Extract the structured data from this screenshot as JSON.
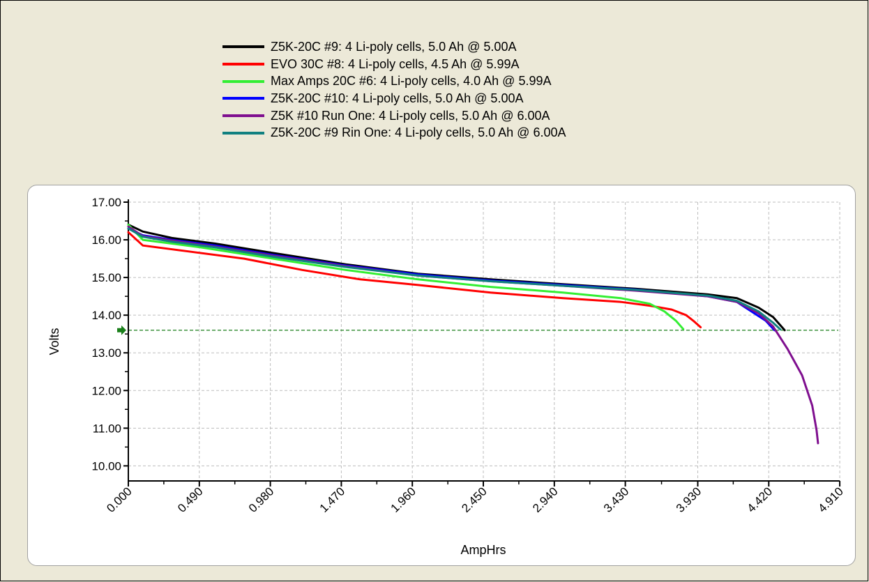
{
  "chart_data": {
    "type": "line",
    "xlabel": "AmpHrs",
    "ylabel": "Volts",
    "xlim": [
      0,
      4.9
    ],
    "ylim": [
      9.6,
      17.0
    ],
    "x_ticks": [
      "0.000",
      "0.490",
      "0.980",
      "1.470",
      "1.960",
      "2.450",
      "2.940",
      "3.430",
      "3.930",
      "4.420",
      "4.910"
    ],
    "y_ticks": [
      "17.00",
      "16.00",
      "15.00",
      "14.00",
      "13.00",
      "12.00",
      "11.00",
      "10.00"
    ],
    "grid": true,
    "legend_position": "top",
    "reference_line": {
      "y": 13.6,
      "color": "#1a7f1a",
      "style": "dashed"
    },
    "series": [
      {
        "name": "Z5K-20C #9: 4 Li-poly cells, 5.0 Ah @ 5.00A",
        "color": "#000000",
        "points": [
          [
            0,
            16.4
          ],
          [
            0.1,
            16.22
          ],
          [
            0.3,
            16.05
          ],
          [
            0.6,
            15.9
          ],
          [
            1.0,
            15.65
          ],
          [
            1.5,
            15.35
          ],
          [
            2.0,
            15.1
          ],
          [
            2.5,
            14.95
          ],
          [
            3.0,
            14.82
          ],
          [
            3.5,
            14.7
          ],
          [
            4.0,
            14.55
          ],
          [
            4.2,
            14.45
          ],
          [
            4.35,
            14.2
          ],
          [
            4.45,
            13.95
          ],
          [
            4.53,
            13.6
          ]
        ]
      },
      {
        "name": "EVO 30C #8: 4 Li-poly cells, 4.5 Ah @ 5.99A",
        "color": "#ff0000",
        "points": [
          [
            0,
            16.2
          ],
          [
            0.1,
            15.85
          ],
          [
            0.4,
            15.7
          ],
          [
            0.8,
            15.5
          ],
          [
            1.2,
            15.2
          ],
          [
            1.6,
            14.95
          ],
          [
            2.0,
            14.8
          ],
          [
            2.5,
            14.6
          ],
          [
            3.0,
            14.45
          ],
          [
            3.4,
            14.35
          ],
          [
            3.6,
            14.25
          ],
          [
            3.75,
            14.15
          ],
          [
            3.85,
            14.0
          ],
          [
            3.9,
            13.85
          ],
          [
            3.95,
            13.68
          ]
        ]
      },
      {
        "name": "Max Amps 20C #6: 4 Li-poly cells, 4.0 Ah @ 5.99A",
        "color": "#33ee33",
        "points": [
          [
            0,
            16.4
          ],
          [
            0.1,
            16.0
          ],
          [
            0.5,
            15.8
          ],
          [
            1.0,
            15.5
          ],
          [
            1.5,
            15.2
          ],
          [
            2.0,
            14.95
          ],
          [
            2.5,
            14.75
          ],
          [
            3.0,
            14.6
          ],
          [
            3.4,
            14.45
          ],
          [
            3.6,
            14.3
          ],
          [
            3.7,
            14.1
          ],
          [
            3.78,
            13.85
          ],
          [
            3.83,
            13.63
          ]
        ]
      },
      {
        "name": "Z5K-20C #10: 4 Li-poly cells, 5.0 Ah @ 5.00A",
        "color": "#0000ff",
        "points": [
          [
            0,
            16.3
          ],
          [
            0.1,
            16.12
          ],
          [
            0.3,
            16.0
          ],
          [
            0.6,
            15.85
          ],
          [
            1.0,
            15.6
          ],
          [
            1.5,
            15.32
          ],
          [
            2.0,
            15.08
          ],
          [
            2.5,
            14.92
          ],
          [
            3.0,
            14.8
          ],
          [
            3.5,
            14.68
          ],
          [
            4.0,
            14.5
          ],
          [
            4.2,
            14.35
          ],
          [
            4.3,
            14.1
          ],
          [
            4.4,
            13.85
          ],
          [
            4.46,
            13.6
          ]
        ]
      },
      {
        "name": "Z5K #10 Run One: 4 Li-poly cells, 5.0 Ah @ 6.00A",
        "color": "#7f0f8f",
        "points": [
          [
            0,
            16.35
          ],
          [
            0.1,
            16.1
          ],
          [
            0.3,
            15.98
          ],
          [
            0.6,
            15.82
          ],
          [
            1.0,
            15.58
          ],
          [
            1.5,
            15.3
          ],
          [
            2.0,
            15.05
          ],
          [
            2.5,
            14.9
          ],
          [
            3.0,
            14.78
          ],
          [
            3.5,
            14.65
          ],
          [
            4.0,
            14.5
          ],
          [
            4.2,
            14.35
          ],
          [
            4.35,
            14.05
          ],
          [
            4.45,
            13.7
          ],
          [
            4.55,
            13.1
          ],
          [
            4.65,
            12.4
          ],
          [
            4.72,
            11.6
          ],
          [
            4.75,
            10.95
          ],
          [
            4.76,
            10.6
          ]
        ]
      },
      {
        "name": "Z5K-20C #9 Rin One: 4 Li-poly cells, 5.0 Ah @ 6.00A",
        "color": "#108080",
        "points": [
          [
            0,
            16.3
          ],
          [
            0.1,
            16.08
          ],
          [
            0.3,
            15.95
          ],
          [
            0.6,
            15.8
          ],
          [
            1.0,
            15.55
          ],
          [
            1.5,
            15.28
          ],
          [
            2.0,
            15.05
          ],
          [
            2.5,
            14.9
          ],
          [
            3.0,
            14.78
          ],
          [
            3.5,
            14.67
          ],
          [
            4.0,
            14.52
          ],
          [
            4.2,
            14.38
          ],
          [
            4.35,
            14.1
          ],
          [
            4.45,
            13.8
          ],
          [
            4.5,
            13.62
          ]
        ]
      }
    ]
  }
}
